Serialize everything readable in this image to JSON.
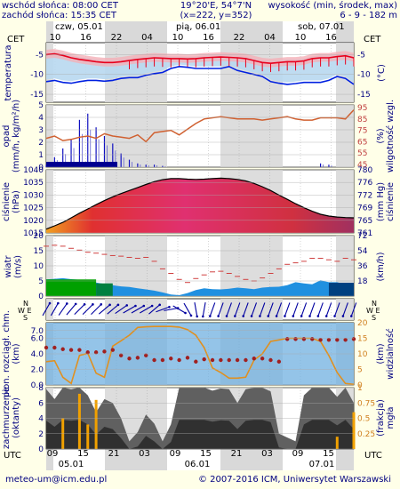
{
  "header": {
    "sunrise": "wschód słońca: 08:00 CET",
    "sunset": "zachód słońca: 15:35 CET",
    "coords": "19°20'E, 54°7'N",
    "grid": "(x=222, y=352)",
    "altitude_label": "wysokość (min, środek, max)",
    "altitude_values": "6 - 9 - 182 m"
  },
  "footer": {
    "email": "meteo-um@icm.edu.pl",
    "copyright": "© 2007-2016 ICM, Uniwersytet Warszawski"
  },
  "colors": {
    "bg": "#ffffe8",
    "plot_bg": "#ffffff",
    "night": "#d9d9d9",
    "axis_text": "#000080",
    "temp_red": "#e8001c",
    "temp_blue": "#0020e0",
    "precip_blue": "#1010c0",
    "humidity": "#d06030",
    "pressure_line": "#000000",
    "wind_green": "#00a000",
    "wind_blue": "#0060c0",
    "vis_orange": "#e09020",
    "cloud_dark": "#404040"
  },
  "time_axis": {
    "top_days": [
      "czw, 05.01",
      "pią, 06.01",
      "sob, 07.01"
    ],
    "top_hours": [
      "10",
      "16",
      "22",
      "04",
      "10",
      "16",
      "22",
      "04",
      "10",
      "16"
    ],
    "bottom_hours": [
      "09",
      "15",
      "21",
      "03",
      "09",
      "15",
      "21",
      "03",
      "09",
      "15"
    ],
    "bottom_days": [
      "05.01",
      "06.01",
      "07.01"
    ],
    "left_tz": "CET",
    "right_tz": "CET",
    "bottom_tz_left": "UTC",
    "bottom_tz_right": "UTC"
  },
  "chart_data": [
    {
      "type": "line",
      "id": "temperature",
      "ylabel_left": "temperatura",
      "ylabel_right": "(°C)",
      "ylim": [
        -17,
        -2
      ],
      "ticks": [
        "-5",
        "-10",
        "-15"
      ],
      "series": [
        {
          "values": [
            -5.0,
            -4.8,
            -5.2,
            -5.8,
            -6.2,
            -6.5,
            -6.8,
            -7.0,
            -7.0,
            -6.8,
            -6.5,
            -6.2,
            -6.0,
            -5.8,
            -5.9,
            -6.0,
            -6.0,
            -6.1,
            -6.0,
            -5.8,
            -5.7,
            -5.6,
            -5.7,
            -5.8,
            -6.0,
            -6.5,
            -7.0,
            -7.2,
            -7.0,
            -6.8,
            -6.8,
            -6.6,
            -6.0,
            -5.8,
            -5.8,
            -5.5,
            -5.3,
            -5.8
          ]
        },
        {
          "values": [
            -11.8,
            -11.5,
            -12.0,
            -12.2,
            -11.8,
            -11.5,
            -11.5,
            -11.7,
            -11.5,
            -11.0,
            -10.8,
            -10.8,
            -10.2,
            -9.8,
            -9.5,
            -8.5,
            -8.0,
            -8.2,
            -8.5,
            -8.5,
            -8.5,
            -8.5,
            -8.0,
            -9.0,
            -9.5,
            -10.0,
            -10.5,
            -11.8,
            -12.2,
            -12.5,
            -12.3,
            -12.0,
            -12.0,
            -12.0,
            -11.5,
            -10.5,
            -11.0,
            -12.5
          ]
        }
      ]
    },
    {
      "type": "bar",
      "id": "precipitation",
      "ylabel_left": "opad",
      "ylabel_left2": "(mm/h, kg/m²/h)",
      "ylabel_right": "wilgotność wzgl.",
      "ylabel_right2": "(%)",
      "ylim_left": [
        0,
        5
      ],
      "ticks_left": [
        "5",
        "4",
        "3",
        "2",
        "1",
        "0"
      ],
      "ticks_right": [
        "95",
        "85",
        "75",
        "65",
        "55",
        "45"
      ],
      "humidity_values": [
        68,
        70,
        66,
        67,
        69,
        70,
        68,
        72,
        70,
        69,
        68,
        71,
        65,
        73,
        74,
        75,
        71,
        76,
        81,
        85,
        86,
        87,
        86,
        85,
        85,
        85,
        84,
        85,
        86,
        87,
        85,
        84,
        84,
        86,
        86,
        86,
        85,
        93
      ],
      "precip_values": [
        0.2,
        0.8,
        1.5,
        2.2,
        3.8,
        4.3,
        3.2,
        2.5,
        1.9,
        1.1,
        0.6,
        0.3,
        0.2,
        0.2,
        0.1,
        0,
        0,
        0,
        0,
        0,
        0,
        0,
        0,
        0,
        0,
        0,
        0,
        0,
        0,
        0,
        0,
        0,
        0,
        0.3,
        0.2,
        0,
        0,
        0
      ]
    },
    {
      "type": "area",
      "id": "pressure",
      "ylabel_left": "ciśnienie",
      "ylabel_left2": "(hPa)",
      "ylabel_right": "ciśnienie",
      "ylabel_right2": "(mm Hg)",
      "ylim": [
        1015,
        1040
      ],
      "ticks_left": [
        "1040",
        "1035",
        "1030",
        "1025",
        "1020",
        "1015"
      ],
      "ticks_right": [
        "780",
        "776",
        "772",
        "769",
        "765",
        "761"
      ],
      "values": [
        1016.5,
        1017.8,
        1019.2,
        1021.0,
        1022.8,
        1024.5,
        1026.2,
        1027.8,
        1029.3,
        1030.6,
        1031.8,
        1033.0,
        1034.2,
        1035.3,
        1036.1,
        1036.5,
        1036.5,
        1036.3,
        1036.2,
        1036.3,
        1036.5,
        1036.7,
        1036.5,
        1036.2,
        1035.6,
        1034.6,
        1033.3,
        1031.8,
        1030.0,
        1028.3,
        1026.6,
        1025.0,
        1023.6,
        1022.4,
        1021.7,
        1021.3,
        1021.1,
        1021.0
      ]
    },
    {
      "type": "area",
      "id": "wind",
      "ylabel_left": "wiatr",
      "ylabel_left2": "(m/s)",
      "ylabel_right": "(km/h)",
      "ylim": [
        0,
        20
      ],
      "ticks_left": [
        "20",
        "15",
        "10",
        "5",
        "0"
      ],
      "ticks_right": [
        "72",
        "54",
        "36",
        "18"
      ],
      "speed_values": [
        5.5,
        5.7,
        5.9,
        5.6,
        5.4,
        5.2,
        4.5,
        4.0,
        3.6,
        3.2,
        3.0,
        2.6,
        2.2,
        1.8,
        1.2,
        0.5,
        0.3,
        1.0,
        2.0,
        2.6,
        2.3,
        2.2,
        2.4,
        2.8,
        2.6,
        2.3,
        2.8,
        3.0,
        3.1,
        3.6,
        4.6,
        4.2,
        3.9,
        5.2,
        4.6,
        4.6,
        3.9,
        4.4
      ],
      "gust_values": [
        16.5,
        16.8,
        16.5,
        15.8,
        15.2,
        14.5,
        14.2,
        13.8,
        13.4,
        13.2,
        12.8,
        12.5,
        12.8,
        11.5,
        9.0,
        7.5,
        5.5,
        4.5,
        5.8,
        7.0,
        8.0,
        8.2,
        7.5,
        6.5,
        5.5,
        5.0,
        6.0,
        7.5,
        9.0,
        10.5,
        11.0,
        11.5,
        12.5,
        12.5,
        12.0,
        11.5,
        12.5,
        12.0
      ]
    },
    {
      "type": "scatter",
      "id": "wind_direction",
      "ylabel_left": "N\nW E\nS",
      "ylabel_right": "N\nW E\nS",
      "directions_deg": [
        210,
        210,
        215,
        220,
        225,
        225,
        225,
        230,
        230,
        235,
        240,
        240,
        240,
        230,
        250,
        260,
        300,
        330,
        350,
        10,
        20,
        20,
        20,
        20,
        20,
        20,
        20,
        20,
        20,
        20,
        20,
        20,
        20,
        20,
        20,
        20,
        20,
        20
      ]
    },
    {
      "type": "line",
      "id": "visibility",
      "ylabel_left": "pion. rozciągł. chm.",
      "ylabel_left2": "(km)",
      "ylabel_right": "widzialność",
      "ylabel_right2": "(km)",
      "ylim_left": [
        0,
        8
      ],
      "ticks_left": [
        "7.0",
        "6.0",
        "4.0",
        "2.0",
        "0.0"
      ],
      "ticks_right": [
        "20",
        "15",
        "10",
        "5",
        "0"
      ],
      "visibility_values": [
        7.5,
        7.8,
        2.5,
        0.5,
        9.5,
        10.2,
        3.8,
        2.5,
        12.5,
        14.2,
        16.0,
        18.5,
        18.7,
        18.8,
        18.8,
        18.8,
        18.6,
        17.8,
        16.0,
        12.0,
        5.5,
        4.0,
        2.2,
        2.2,
        2.5,
        8.0,
        10.0,
        14.0,
        14.5,
        15.0,
        15.0,
        15.0,
        15.0,
        14.0,
        9.5,
        4.0,
        0.5,
        0.2
      ],
      "cloud_ext_values": [
        4.8,
        4.8,
        4.6,
        4.5,
        4.5,
        4.2,
        4.2,
        4.3,
        4.5,
        3.8,
        3.4,
        3.5,
        3.8,
        3.2,
        3.2,
        3.4,
        3.2,
        3.5,
        3.0,
        3.3,
        3.2,
        3.2,
        3.2,
        3.2,
        3.2,
        3.4,
        3.4,
        3.2,
        3.0,
        5.9,
        5.9,
        5.9,
        5.9,
        5.8,
        5.8,
        5.8,
        5.8,
        5.9
      ]
    },
    {
      "type": "area",
      "id": "clouds",
      "ylabel_left": "zachmurzenie",
      "ylabel_left2": "(oktanty)",
      "ylabel_right": "mgła",
      "ylabel_right2": "(frakcja)",
      "ylim": [
        0,
        8
      ],
      "ticks_left": [
        "8",
        "6",
        "4",
        "2",
        "0"
      ],
      "ticks_right": [
        "1",
        "0.75",
        "0.5",
        "0.25"
      ],
      "total_cloud": [
        7.8,
        6.5,
        8.0,
        7.8,
        8.0,
        7.0,
        4.8,
        6.5,
        6.0,
        4.0,
        1.0,
        2.2,
        4.5,
        3.3,
        1.0,
        3.2,
        8.0,
        8.0,
        8.0,
        8.0,
        7.6,
        7.9,
        7.8,
        6.0,
        7.8,
        8.0,
        8.0,
        7.5,
        2.0,
        1.5,
        1.0,
        7.0,
        8.0,
        8.0,
        8.0,
        6.8,
        8.0,
        6.0
      ],
      "fog": [
        0,
        0,
        0.5,
        0,
        0.9,
        0.4,
        0.8,
        0,
        0,
        0,
        0,
        0,
        0,
        0,
        0,
        0,
        0,
        0,
        0,
        0,
        0,
        0,
        0,
        0,
        0,
        0,
        0,
        0,
        0,
        0,
        0,
        0,
        0,
        0,
        0,
        0.2,
        0,
        0.6
      ]
    }
  ]
}
